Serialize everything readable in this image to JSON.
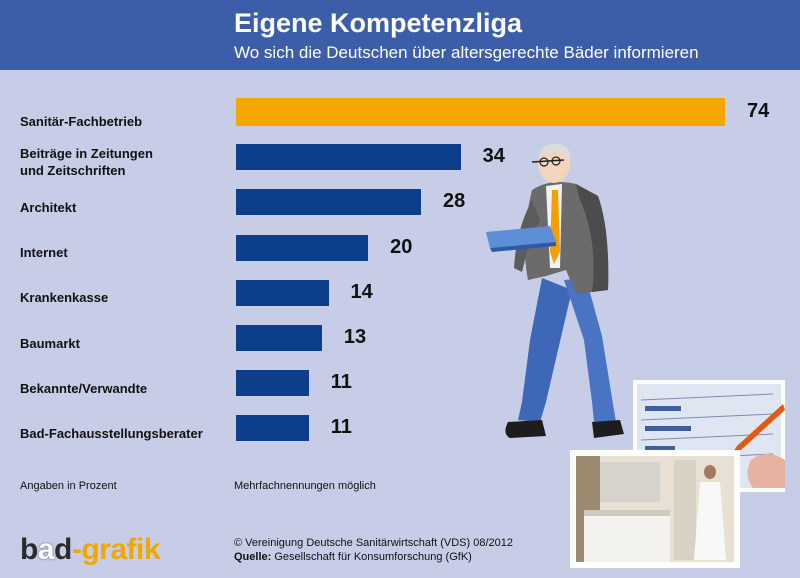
{
  "title": "Eigene Kompetenzliga",
  "subtitle": "Wo sich die Deutschen über altersgerechte Bäder informieren",
  "colors": {
    "header": "#3c5ea8",
    "background": "#c7cce7",
    "bar_primary": "#f5a700",
    "bar_default": "#0d3e8a"
  },
  "chart_data": {
    "type": "bar",
    "orientation": "horizontal",
    "categories": [
      "Sanitär-Fachbetrieb",
      "Beiträge in Zeitungen\nund Zeitschriften",
      "Architekt",
      "Internet",
      "Krankenkasse",
      "Baumarkt",
      "Bekannte/Verwandte",
      "Bad-Fachausstellungsberater"
    ],
    "values": [
      74,
      34,
      28,
      20,
      14,
      13,
      11,
      11
    ],
    "title": "Eigene Kompetenzliga",
    "subtitle": "Wo sich die Deutschen über altersgerechte Bäder informieren",
    "unit": "Angaben in Prozent",
    "xlim": [
      0,
      74
    ],
    "grid": false,
    "highlight_index": 0
  },
  "notes": {
    "unit": "Angaben in Prozent",
    "multiple": "Mehrfachnennungen möglich"
  },
  "footer": {
    "copyright": "© Vereinigung Deutsche Sanitärwirtschaft (VDS)  08/2012",
    "source_label": "Quelle:",
    "source_text": " Gesellschaft für Konsumforschung (GfK)"
  },
  "logo": {
    "part1": "b",
    "part2": "a",
    "part3": "d",
    "part4": "-grafik"
  },
  "icons": [
    "elderly-man-illustration",
    "survey-form-photo",
    "bathroom-photo"
  ]
}
